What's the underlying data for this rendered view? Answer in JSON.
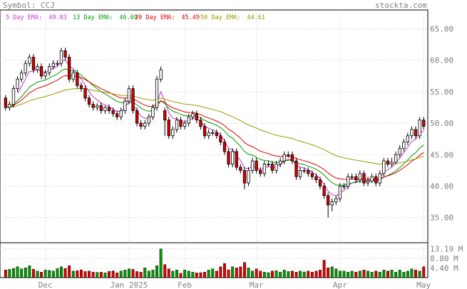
{
  "header": {
    "symbol_label": "Symbol: CCJ",
    "brand": "stockta.com"
  },
  "legend": [
    {
      "label": "5 Day EMA:",
      "value": "49.03",
      "color": "#cc33cc"
    },
    {
      "label": "13 Day EMA:",
      "value": "46.69",
      "color": "#009900"
    },
    {
      "label": "20 Day EMA:",
      "value": "45.49",
      "color": "#dd0000"
    },
    {
      "label": "50 Day EMA:",
      "value": "44.61",
      "color": "#999900"
    }
  ],
  "colors": {
    "up": "#ffffff",
    "down": "#dd0000",
    "wick": "#000000",
    "grid": "#b0b0b0",
    "vol_up": "#009900",
    "vol_down": "#dd0000",
    "text": "#808080"
  },
  "chart_data": {
    "type": "candlestick",
    "price_axis": {
      "ylim": [
        31,
        68
      ],
      "ticks": [
        35,
        40,
        45,
        50,
        55,
        60,
        65
      ],
      "tick_labels": [
        "35.00",
        "40.00",
        "45.00",
        "50.00",
        "55.00",
        "60.00",
        "65.00"
      ]
    },
    "volume_axis": {
      "ylim": [
        0,
        16
      ],
      "ticks": [
        4.4,
        8.8,
        13.19
      ],
      "tick_labels": [
        "4.40 M",
        "8.80 M",
        "13.19 M"
      ]
    },
    "x_labels": [
      {
        "label": "Dec",
        "index": 10
      },
      {
        "label": "Jan 2025",
        "index": 31
      },
      {
        "label": "Feb",
        "index": 45
      },
      {
        "label": "Mar",
        "index": 63
      },
      {
        "label": "Apr",
        "index": 84
      },
      {
        "label": "May",
        "index": 105
      }
    ],
    "close": [
      52.5,
      53.0,
      55.5,
      57.0,
      58.0,
      59.5,
      60.5,
      58.5,
      59.0,
      57.5,
      58.0,
      59.0,
      59.5,
      59.5,
      61.5,
      60.5,
      57.0,
      58.0,
      56.0,
      55.5,
      54.0,
      53.0,
      52.5,
      52.8,
      52.0,
      52.5,
      52.0,
      51.5,
      51.0,
      52.0,
      53.5,
      55.5,
      52.0,
      50.0,
      49.5,
      50.0,
      51.0,
      52.5,
      57.0,
      58.5,
      50.5,
      48.0,
      49.0,
      50.5,
      49.5,
      50.0,
      51.0,
      51.5,
      50.5,
      49.5,
      48.0,
      48.5,
      48.5,
      48.0,
      47.0,
      45.5,
      43.5,
      45.5,
      43.0,
      42.5,
      40.5,
      42.5,
      44.0,
      42.5,
      42.0,
      43.5,
      43.5,
      42.5,
      43.5,
      44.0,
      45.0,
      45.0,
      44.0,
      41.5,
      42.5,
      42.5,
      42.0,
      41.5,
      41.0,
      40.0,
      38.5,
      37.0,
      37.5,
      38.0,
      40.0,
      40.0,
      41.5,
      41.5,
      41.0,
      42.0,
      40.5,
      40.8,
      41.5,
      40.5,
      42.0,
      44.0,
      43.5,
      43.8,
      45.0,
      46.0,
      47.0,
      48.0,
      49.0,
      48.0,
      50.5,
      49.5
    ],
    "open": [
      54.0,
      52.5,
      53.0,
      55.5,
      57.0,
      58.0,
      59.5,
      60.5,
      58.5,
      59.0,
      57.5,
      58.0,
      59.0,
      59.5,
      59.5,
      61.5,
      60.5,
      57.0,
      58.0,
      56.0,
      55.5,
      54.0,
      53.0,
      52.5,
      52.8,
      52.0,
      52.5,
      52.0,
      51.5,
      51.0,
      52.0,
      53.5,
      55.5,
      52.0,
      50.0,
      49.5,
      50.0,
      51.0,
      52.5,
      57.0,
      52.0,
      50.5,
      48.0,
      49.0,
      50.5,
      49.5,
      50.0,
      51.0,
      51.5,
      50.5,
      49.5,
      48.0,
      48.5,
      48.5,
      48.0,
      47.0,
      45.5,
      43.5,
      45.5,
      43.0,
      42.5,
      40.5,
      42.5,
      44.0,
      42.5,
      42.0,
      43.5,
      43.5,
      42.5,
      43.5,
      44.0,
      45.0,
      45.0,
      44.0,
      41.5,
      42.5,
      42.5,
      42.0,
      41.5,
      41.0,
      40.0,
      38.5,
      37.0,
      37.5,
      38.0,
      40.0,
      40.0,
      41.5,
      41.5,
      41.0,
      42.0,
      40.5,
      40.8,
      41.5,
      40.5,
      42.0,
      44.0,
      43.5,
      43.8,
      45.0,
      46.0,
      47.0,
      48.0,
      49.0,
      48.0,
      50.5
    ],
    "high": [
      54.5,
      53.5,
      56.0,
      57.5,
      58.5,
      60.0,
      61.0,
      61.0,
      59.5,
      59.5,
      58.5,
      59.5,
      60.0,
      60.0,
      62.0,
      62.0,
      61.0,
      58.5,
      58.5,
      56.5,
      56.0,
      54.5,
      53.5,
      53.2,
      53.3,
      52.8,
      53.0,
      52.5,
      52.0,
      52.5,
      54.0,
      56.0,
      56.0,
      52.5,
      50.5,
      50.5,
      51.5,
      53.0,
      57.5,
      59.0,
      52.5,
      51.0,
      49.5,
      51.0,
      51.0,
      50.5,
      51.5,
      52.0,
      52.0,
      51.0,
      50.0,
      49.0,
      49.0,
      49.0,
      48.5,
      47.5,
      46.0,
      46.0,
      46.0,
      43.5,
      43.0,
      43.0,
      44.5,
      44.5,
      43.0,
      44.0,
      44.0,
      44.0,
      44.0,
      44.5,
      45.5,
      45.5,
      45.5,
      44.5,
      43.0,
      43.0,
      43.0,
      42.5,
      42.0,
      41.5,
      40.5,
      39.0,
      38.0,
      38.5,
      40.5,
      40.5,
      42.0,
      42.0,
      42.0,
      42.5,
      42.5,
      41.5,
      42.0,
      42.0,
      42.5,
      44.5,
      44.5,
      44.5,
      45.5,
      46.5,
      47.5,
      48.5,
      49.5,
      49.5,
      51.0,
      51.0
    ],
    "low": [
      52.0,
      52.0,
      52.5,
      55.0,
      56.5,
      57.5,
      59.0,
      58.0,
      58.0,
      57.0,
      57.0,
      57.5,
      58.5,
      59.0,
      59.0,
      60.0,
      56.5,
      56.5,
      55.5,
      55.0,
      53.5,
      52.5,
      52.0,
      52.0,
      51.5,
      51.5,
      51.5,
      51.0,
      50.5,
      50.5,
      51.5,
      53.0,
      51.5,
      49.5,
      49.0,
      49.0,
      49.5,
      50.5,
      52.0,
      56.5,
      48.0,
      47.5,
      47.5,
      48.5,
      49.0,
      49.0,
      49.5,
      50.5,
      50.0,
      49.0,
      47.5,
      47.5,
      48.0,
      47.5,
      46.5,
      45.0,
      43.0,
      43.0,
      42.5,
      42.0,
      39.5,
      40.0,
      42.0,
      42.0,
      41.5,
      41.5,
      43.0,
      42.0,
      42.0,
      43.0,
      43.5,
      44.5,
      43.5,
      41.0,
      41.0,
      42.0,
      41.5,
      41.0,
      40.5,
      39.5,
      38.0,
      35.0,
      36.0,
      37.0,
      37.5,
      39.5,
      39.5,
      41.0,
      40.5,
      40.5,
      40.0,
      40.0,
      40.5,
      40.0,
      40.0,
      41.5,
      43.0,
      43.0,
      43.5,
      44.5,
      45.5,
      46.5,
      47.5,
      47.5,
      47.5,
      49.0
    ],
    "volume": [
      3.5,
      3.8,
      4.2,
      5.0,
      4.0,
      4.5,
      5.5,
      3.9,
      3.0,
      2.5,
      3.5,
      3.3,
      3.0,
      4.1,
      5.0,
      4.2,
      5.5,
      3.0,
      3.2,
      3.6,
      2.8,
      3.0,
      2.5,
      2.4,
      2.5,
      2.2,
      2.9,
      3.1,
      2.2,
      3.0,
      3.5,
      4.0,
      3.8,
      2.8,
      2.5,
      4.5,
      3.0,
      3.5,
      5.5,
      13.2,
      6.0,
      4.0,
      3.0,
      3.5,
      2.0,
      3.5,
      3.0,
      2.5,
      2.2,
      2.3,
      2.5,
      3.5,
      4.0,
      3.0,
      5.0,
      6.5,
      3.6,
      5.0,
      4.5,
      5.0,
      7.0,
      4.5,
      3.0,
      4.0,
      3.0,
      2.5,
      2.3,
      3.0,
      3.2,
      2.5,
      3.5,
      2.8,
      3.0,
      2.5,
      3.0,
      2.6,
      3.0,
      2.5,
      3.0,
      3.5,
      8.0,
      4.5,
      5.0,
      4.0,
      3.0,
      3.0,
      2.5,
      3.0,
      2.5,
      3.0,
      3.5,
      3.0,
      2.5,
      3.0,
      2.5,
      3.5,
      3.0,
      3.5,
      2.5,
      3.5,
      2.5,
      3.0,
      4.0,
      3.5,
      3.0,
      5.0
    ],
    "series": [
      {
        "name": "5 Day EMA",
        "color": "#cc33cc",
        "start": 3
      },
      {
        "name": "13 Day EMA",
        "color": "#009900",
        "start": 0
      },
      {
        "name": "20 Day EMA",
        "color": "#dd0000",
        "start": 0
      },
      {
        "name": "50 Day EMA",
        "color": "#999900",
        "start": 0
      }
    ]
  }
}
